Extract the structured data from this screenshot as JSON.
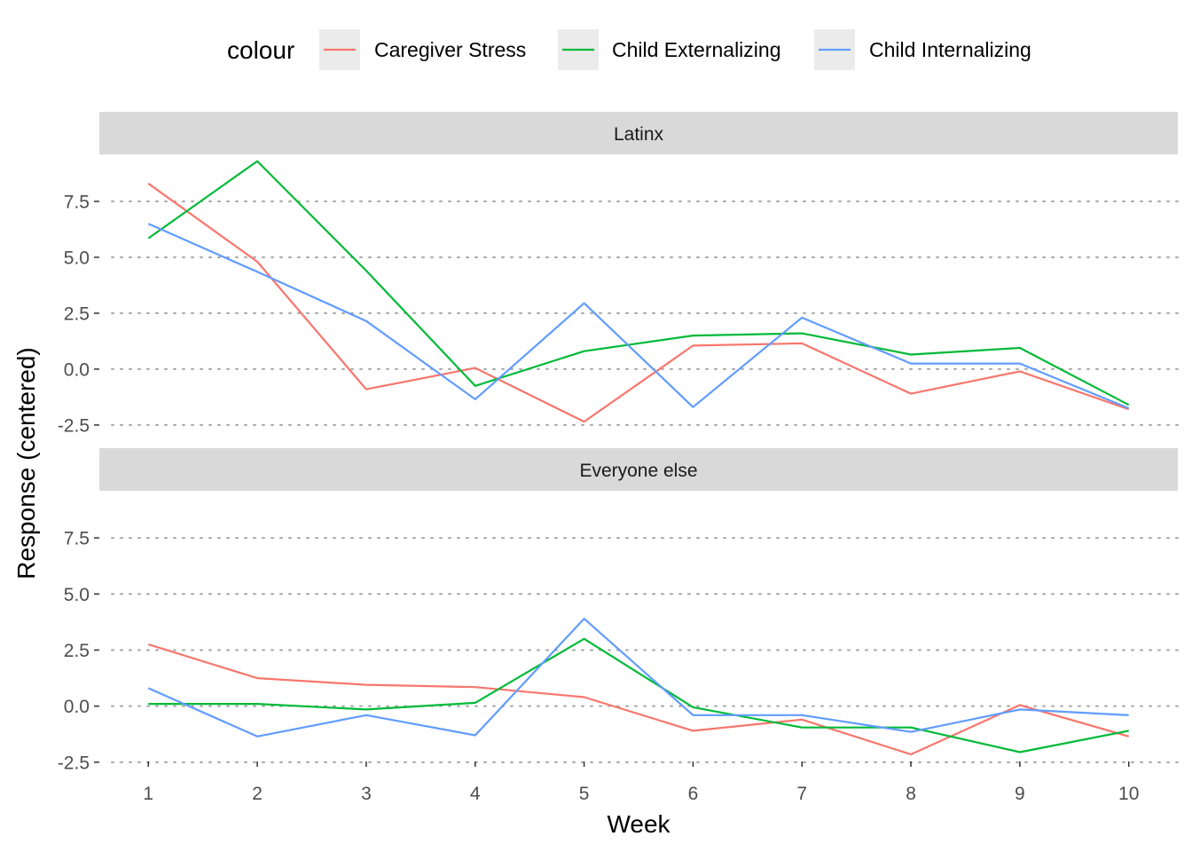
{
  "chart_data": {
    "type": "line",
    "xlabel": "Week",
    "ylabel": "Response (centered)",
    "legend": {
      "title": "colour",
      "position": "top"
    },
    "x": [
      1,
      2,
      3,
      4,
      5,
      6,
      7,
      8,
      9,
      10
    ],
    "x_ticks": [
      "1",
      "2",
      "3",
      "4",
      "5",
      "6",
      "7",
      "8",
      "9",
      "10"
    ],
    "xlim": [
      0.55,
      10.45
    ],
    "ylim": [
      -3.1,
      9.6
    ],
    "y_ticks": [
      {
        "value": -2.5,
        "label": "-2.5"
      },
      {
        "value": 0,
        "label": "0.0"
      },
      {
        "value": 2.5,
        "label": "2.5"
      },
      {
        "value": 5,
        "label": "5.0"
      },
      {
        "value": 7.5,
        "label": "7.5"
      }
    ],
    "grid": "horizontal-dotted",
    "series_meta": [
      {
        "key": "caregiver_stress",
        "name": "Caregiver Stress",
        "color": "#F8766D"
      },
      {
        "key": "child_externalizing",
        "name": "Child Externalizing",
        "color": "#00BA38"
      },
      {
        "key": "child_internalizing",
        "name": "Child Internalizing",
        "color": "#619CFF"
      }
    ],
    "panels": [
      {
        "label": "Latinx",
        "series": {
          "caregiver_stress": [
            8.3,
            4.8,
            -0.9,
            0.05,
            -2.35,
            1.05,
            1.15,
            -1.1,
            -0.1,
            -1.8
          ],
          "child_externalizing": [
            5.85,
            9.3,
            4.4,
            -0.75,
            0.8,
            1.5,
            1.6,
            0.65,
            0.95,
            -1.6
          ],
          "child_internalizing": [
            6.5,
            4.35,
            2.15,
            -1.35,
            2.95,
            -1.7,
            2.3,
            0.25,
            0.25,
            -1.75
          ]
        }
      },
      {
        "label": "Everyone else",
        "series": {
          "caregiver_stress": [
            2.75,
            1.25,
            0.95,
            0.85,
            0.4,
            -1.1,
            -0.6,
            -2.15,
            0.05,
            -1.35
          ],
          "child_externalizing": [
            0.1,
            0.1,
            -0.15,
            0.15,
            3.0,
            -0.05,
            -0.95,
            -0.95,
            -2.05,
            -1.1
          ],
          "child_internalizing": [
            0.8,
            -1.35,
            -0.4,
            -1.3,
            3.9,
            -0.4,
            -0.4,
            -1.15,
            -0.15,
            -0.4
          ]
        }
      }
    ]
  }
}
